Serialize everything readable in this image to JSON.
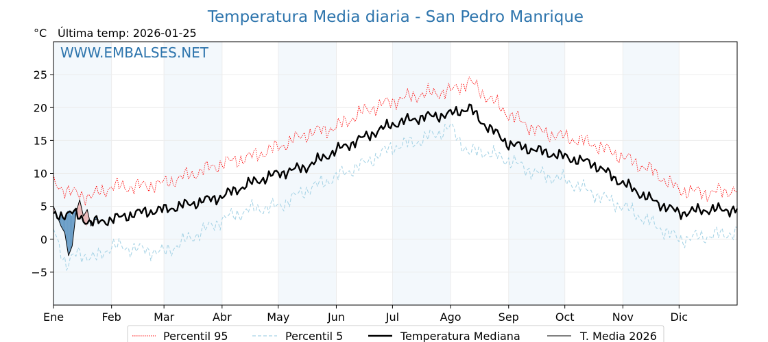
{
  "chart_data": {
    "type": "line",
    "title": "Temperatura Media diaria - San Pedro Manrique",
    "ylabel": "°C",
    "subtitle": "Última temp: 2026-01-25",
    "watermark": "WWW.EMBALSES.NET",
    "xlim": [
      0,
      365
    ],
    "ylim": [
      -10,
      30
    ],
    "yticks": [
      -5,
      0,
      5,
      10,
      15,
      20,
      25
    ],
    "ytick_labels": [
      "−5",
      "0",
      "5",
      "10",
      "15",
      "20",
      "25"
    ],
    "months": [
      "Ene",
      "Feb",
      "Mar",
      "Abr",
      "May",
      "Jun",
      "Jul",
      "Ago",
      "Sep",
      "Oct",
      "Nov",
      "Dic"
    ],
    "month_starts": [
      0,
      31,
      59,
      90,
      120,
      151,
      181,
      212,
      243,
      273,
      304,
      334
    ],
    "grid": true,
    "legend_position": "bottom",
    "series": [
      {
        "name": "Percentil 95",
        "color": "#ff0000",
        "style": "dotted",
        "x": [
          0,
          10,
          20,
          31,
          45,
          59,
          75,
          90,
          105,
          120,
          135,
          151,
          166,
          181,
          196,
          212,
          222,
          228,
          243,
          258,
          273,
          288,
          304,
          319,
          334,
          349,
          364
        ],
        "y": [
          8.5,
          7.0,
          6.5,
          8.0,
          8.0,
          8.5,
          10.0,
          11.5,
          12.5,
          14.0,
          16.0,
          17.0,
          19.5,
          21.0,
          22.0,
          22.5,
          24.0,
          22.5,
          19.0,
          16.5,
          15.5,
          14.5,
          12.5,
          10.5,
          7.5,
          7.0,
          7.5
        ]
      },
      {
        "name": "Percentil 5",
        "color": "#a8d4e6",
        "style": "dashed",
        "x": [
          0,
          7,
          13,
          22,
          31,
          45,
          59,
          75,
          90,
          105,
          120,
          135,
          151,
          166,
          181,
          196,
          212,
          222,
          228,
          243,
          258,
          273,
          288,
          304,
          319,
          334,
          349,
          364
        ],
        "y": [
          1.5,
          -4.0,
          -2.0,
          -3.0,
          -1.0,
          -1.5,
          -2.0,
          0.5,
          3.0,
          4.5,
          5.0,
          7.5,
          9.5,
          11.5,
          14.0,
          15.0,
          17.0,
          13.0,
          13.5,
          12.0,
          10.0,
          9.0,
          7.0,
          5.0,
          2.5,
          0.0,
          0.5,
          1.0
        ]
      },
      {
        "name": "Temperatura Mediana",
        "color": "#000000",
        "style": "solid-thick",
        "x": [
          0,
          10,
          20,
          31,
          45,
          59,
          75,
          90,
          105,
          120,
          135,
          151,
          166,
          181,
          196,
          212,
          222,
          228,
          243,
          258,
          273,
          288,
          304,
          319,
          334,
          349,
          364
        ],
        "y": [
          3.5,
          4.0,
          2.5,
          3.0,
          4.0,
          4.5,
          5.5,
          6.5,
          8.5,
          10.0,
          11.0,
          13.5,
          15.5,
          17.5,
          18.5,
          19.0,
          20.0,
          18.0,
          14.5,
          13.5,
          12.5,
          11.5,
          8.5,
          6.0,
          4.0,
          4.5,
          4.5
        ]
      },
      {
        "name": "T. Media 2026",
        "color": "#000000",
        "style": "solid-thin",
        "x": [
          0,
          2,
          4,
          6,
          8,
          10,
          12,
          14,
          16,
          18,
          20,
          22,
          24
        ],
        "y": [
          5.0,
          3.5,
          2.0,
          1.0,
          -2.5,
          -1.0,
          4.0,
          6.0,
          3.5,
          4.5,
          2.0,
          3.0,
          3.0
        ]
      }
    ]
  }
}
